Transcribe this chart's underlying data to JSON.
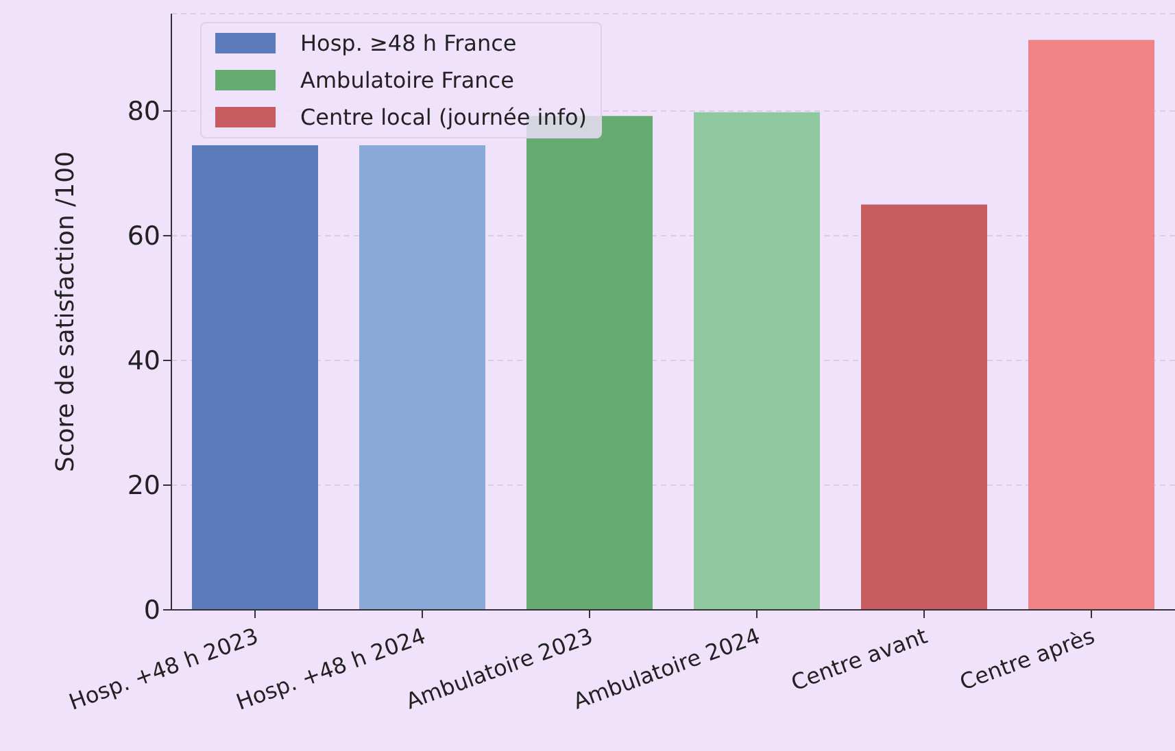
{
  "chart_data": {
    "type": "bar",
    "categories": [
      "Hosp. +48 h 2023",
      "Hosp. +48 h 2024",
      "Ambulatoire 2023",
      "Ambulatoire 2024",
      "Centre avant",
      "Centre après"
    ],
    "series": [
      {
        "name": "Hosp. ≥48 h France",
        "color": "#5b7bbb",
        "colors": [
          "#5b7bbb",
          "#8aa9d9",
          null,
          null,
          null,
          null
        ],
        "values": [
          74.5,
          74.5,
          null,
          null,
          null,
          null
        ]
      },
      {
        "name": "Ambulatoire France",
        "color": "#66ab72",
        "colors": [
          null,
          null,
          "#66ab72",
          "#90c9a0",
          null,
          null
        ],
        "values": [
          null,
          null,
          79.2,
          79.8,
          null,
          null
        ]
      },
      {
        "name": "Centre local (journée info)",
        "color": "#c65b60",
        "colors": [
          null,
          null,
          null,
          null,
          "#c65b60",
          "#ef8385"
        ],
        "values": [
          null,
          null,
          null,
          null,
          65,
          91.4
        ]
      }
    ],
    "ylabel": "Score de satisfaction /100",
    "ylim": [
      0,
      95.6
    ],
    "yticks": [
      0,
      20,
      40,
      60,
      80
    ],
    "grid": "y",
    "legend": "top left"
  }
}
